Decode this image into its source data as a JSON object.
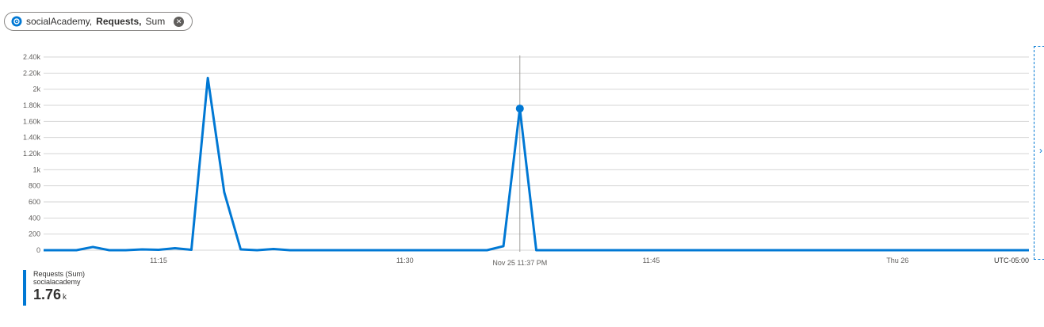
{
  "pill": {
    "resource": "socialAcademy,",
    "metric": "Requests,",
    "aggregation": "Sum",
    "resource_icon": "app-insights-icon",
    "close_icon": "close-icon"
  },
  "chart_data": {
    "type": "line",
    "ylim": [
      0,
      2400
    ],
    "yticks": [
      {
        "v": 0,
        "label": "0"
      },
      {
        "v": 200,
        "label": "200"
      },
      {
        "v": 400,
        "label": "400"
      },
      {
        "v": 600,
        "label": "600"
      },
      {
        "v": 800,
        "label": "800"
      },
      {
        "v": 1000,
        "label": "1k"
      },
      {
        "v": 1200,
        "label": "1.20k"
      },
      {
        "v": 1400,
        "label": "1.40k"
      },
      {
        "v": 1600,
        "label": "1.60k"
      },
      {
        "v": 1800,
        "label": "1.80k"
      },
      {
        "v": 2000,
        "label": "2k"
      },
      {
        "v": 2200,
        "label": "2.20k"
      },
      {
        "v": 2400,
        "label": "2.40k"
      }
    ],
    "xlim": [
      "11:08",
      "12:08"
    ],
    "xticks": [
      {
        "t": "11:15",
        "label": "11:15"
      },
      {
        "t": "11:30",
        "label": "11:30"
      },
      {
        "t": "11:45",
        "label": "11:45"
      },
      {
        "t": "12:00",
        "label": "Thu 26"
      }
    ],
    "timezone_label": "UTC-05:00",
    "cursor": {
      "t": "11:37",
      "label": "Nov 25 11:37 PM",
      "value": 1760
    },
    "series": [
      {
        "name": "Requests (Sum)",
        "color": "#0078d4",
        "points": [
          {
            "t": "11:08",
            "v": 0
          },
          {
            "t": "11:09",
            "v": 0
          },
          {
            "t": "11:10",
            "v": 0
          },
          {
            "t": "11:11",
            "v": 40
          },
          {
            "t": "11:12",
            "v": 0
          },
          {
            "t": "11:13",
            "v": 0
          },
          {
            "t": "11:14",
            "v": 10
          },
          {
            "t": "11:15",
            "v": 5
          },
          {
            "t": "11:16",
            "v": 25
          },
          {
            "t": "11:17",
            "v": 5
          },
          {
            "t": "11:18",
            "v": 2140
          },
          {
            "t": "11:19",
            "v": 720
          },
          {
            "t": "11:20",
            "v": 10
          },
          {
            "t": "11:21",
            "v": 0
          },
          {
            "t": "11:22",
            "v": 15
          },
          {
            "t": "11:23",
            "v": 0
          },
          {
            "t": "11:24",
            "v": 0
          },
          {
            "t": "11:25",
            "v": 0
          },
          {
            "t": "11:26",
            "v": 0
          },
          {
            "t": "11:27",
            "v": 0
          },
          {
            "t": "11:28",
            "v": 0
          },
          {
            "t": "11:29",
            "v": 0
          },
          {
            "t": "11:30",
            "v": 0
          },
          {
            "t": "11:31",
            "v": 0
          },
          {
            "t": "11:32",
            "v": 0
          },
          {
            "t": "11:33",
            "v": 0
          },
          {
            "t": "11:34",
            "v": 0
          },
          {
            "t": "11:35",
            "v": 0
          },
          {
            "t": "11:36",
            "v": 50
          },
          {
            "t": "11:37",
            "v": 1760
          },
          {
            "t": "11:38",
            "v": 0
          },
          {
            "t": "11:39",
            "v": 0
          },
          {
            "t": "11:40",
            "v": 0
          },
          {
            "t": "11:45",
            "v": 0
          },
          {
            "t": "11:50",
            "v": 0
          },
          {
            "t": "11:55",
            "v": 0
          },
          {
            "t": "12:00",
            "v": 0
          },
          {
            "t": "12:05",
            "v": 0
          },
          {
            "t": "12:08",
            "v": 0
          }
        ]
      }
    ]
  },
  "legend": {
    "title": "Requests (Sum)",
    "subtitle": "socialacademy",
    "value": "1.76",
    "unit": "k"
  }
}
